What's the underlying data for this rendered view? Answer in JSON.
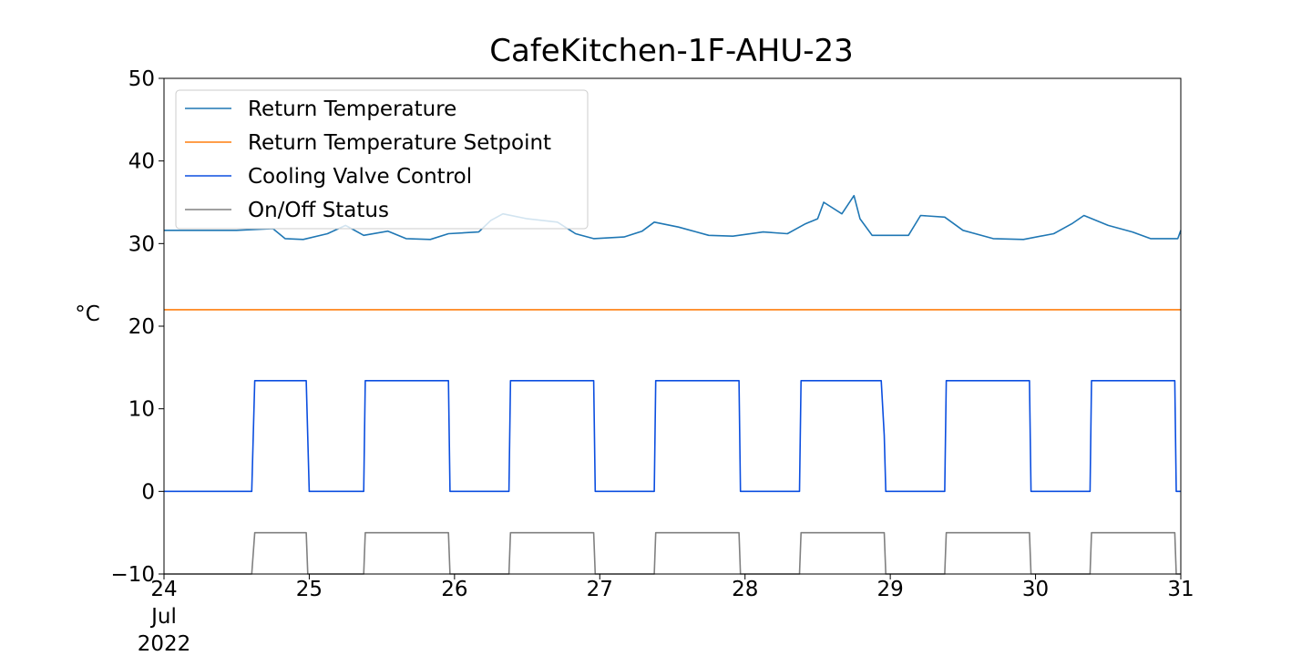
{
  "chart_data": {
    "type": "line",
    "title": "CafeKitchen-1F-AHU-23",
    "xlabel": "",
    "ylabel": "°C",
    "xlim": [
      "2022-07-24",
      "2022-07-31"
    ],
    "ylim": [
      -10,
      50
    ],
    "yticks": [
      "−10",
      "0",
      "10",
      "20",
      "30",
      "40",
      "50"
    ],
    "xticks": [
      {
        "date": "2022-07-24",
        "lines": [
          "24",
          "Jul",
          "2022"
        ]
      },
      {
        "date": "2022-07-25",
        "lines": [
          "25"
        ]
      },
      {
        "date": "2022-07-26",
        "lines": [
          "26"
        ]
      },
      {
        "date": "2022-07-27",
        "lines": [
          "27"
        ]
      },
      {
        "date": "2022-07-28",
        "lines": [
          "28"
        ]
      },
      {
        "date": "2022-07-29",
        "lines": [
          "29"
        ]
      },
      {
        "date": "2022-07-30",
        "lines": [
          "30"
        ]
      },
      {
        "date": "2022-07-31",
        "lines": [
          "31"
        ]
      }
    ],
    "grid": false,
    "legend_position": "upper-left",
    "series": [
      {
        "name": "Return Temperature",
        "color": "#1f77b4",
        "points": [
          [
            "2022-07-24 00:00",
            31.6
          ],
          [
            "2022-07-24 12:00",
            31.6
          ],
          [
            "2022-07-24 18:00",
            31.8
          ],
          [
            "2022-07-24 20:00",
            30.6
          ],
          [
            "2022-07-24 23:00",
            30.5
          ],
          [
            "2022-07-25 03:00",
            31.2
          ],
          [
            "2022-07-25 06:00",
            32.2
          ],
          [
            "2022-07-25 09:00",
            31.0
          ],
          [
            "2022-07-25 13:00",
            31.5
          ],
          [
            "2022-07-25 16:00",
            30.6
          ],
          [
            "2022-07-25 20:00",
            30.5
          ],
          [
            "2022-07-25 23:00",
            31.2
          ],
          [
            "2022-07-26 04:00",
            31.4
          ],
          [
            "2022-07-26 06:00",
            32.8
          ],
          [
            "2022-07-26 08:00",
            33.6
          ],
          [
            "2022-07-26 12:00",
            33.0
          ],
          [
            "2022-07-26 17:00",
            32.6
          ],
          [
            "2022-07-26 20:00",
            31.2
          ],
          [
            "2022-07-26 23:00",
            30.6
          ],
          [
            "2022-07-27 04:00",
            30.8
          ],
          [
            "2022-07-27 07:00",
            31.5
          ],
          [
            "2022-07-27 09:00",
            32.6
          ],
          [
            "2022-07-27 13:00",
            32.0
          ],
          [
            "2022-07-27 18:00",
            31.0
          ],
          [
            "2022-07-27 22:00",
            30.9
          ],
          [
            "2022-07-28 03:00",
            31.4
          ],
          [
            "2022-07-28 07:00",
            31.2
          ],
          [
            "2022-07-28 10:00",
            32.4
          ],
          [
            "2022-07-28 12:00",
            33.0
          ],
          [
            "2022-07-28 13:00",
            35.0
          ],
          [
            "2022-07-28 16:00",
            33.6
          ],
          [
            "2022-07-28 18:00",
            35.8
          ],
          [
            "2022-07-28 19:00",
            33.0
          ],
          [
            "2022-07-28 21:00",
            31.0
          ],
          [
            "2022-07-29 03:00",
            31.0
          ],
          [
            "2022-07-29 05:00",
            33.4
          ],
          [
            "2022-07-29 09:00",
            33.2
          ],
          [
            "2022-07-29 12:00",
            31.6
          ],
          [
            "2022-07-29 17:00",
            30.6
          ],
          [
            "2022-07-29 22:00",
            30.5
          ],
          [
            "2022-07-30 03:00",
            31.2
          ],
          [
            "2022-07-30 06:00",
            32.4
          ],
          [
            "2022-07-30 08:00",
            33.4
          ],
          [
            "2022-07-30 12:00",
            32.2
          ],
          [
            "2022-07-30 16:00",
            31.4
          ],
          [
            "2022-07-30 19:00",
            30.6
          ],
          [
            "2022-07-30 23:30",
            30.6
          ],
          [
            "2022-07-31 00:00",
            31.6
          ]
        ]
      },
      {
        "name": "Return Temperature Setpoint",
        "color": "#ff7f0e",
        "points": [
          [
            "2022-07-24 00:00",
            22
          ],
          [
            "2022-07-31 00:00",
            22
          ]
        ]
      },
      {
        "name": "Cooling Valve Control",
        "color": "#0b4ee0",
        "points": [
          [
            "2022-07-24 00:00",
            0
          ],
          [
            "2022-07-24 14:30",
            0
          ],
          [
            "2022-07-24 15:00",
            13.4
          ],
          [
            "2022-07-24 23:30",
            13.4
          ],
          [
            "2022-07-25 00:00",
            0
          ],
          [
            "2022-07-25 09:00",
            0
          ],
          [
            "2022-07-25 09:15",
            13.4
          ],
          [
            "2022-07-25 23:00",
            13.4
          ],
          [
            "2022-07-25 23:15",
            0
          ],
          [
            "2022-07-26 09:00",
            0
          ],
          [
            "2022-07-26 09:15",
            13.4
          ],
          [
            "2022-07-26 23:00",
            13.4
          ],
          [
            "2022-07-26 23:15",
            0
          ],
          [
            "2022-07-27 09:00",
            0
          ],
          [
            "2022-07-27 09:15",
            13.4
          ],
          [
            "2022-07-27 23:00",
            13.4
          ],
          [
            "2022-07-27 23:15",
            0
          ],
          [
            "2022-07-28 09:00",
            0
          ],
          [
            "2022-07-28 09:15",
            13.4
          ],
          [
            "2022-07-28 22:30",
            13.4
          ],
          [
            "2022-07-28 23:00",
            6.8
          ],
          [
            "2022-07-28 23:15",
            0
          ],
          [
            "2022-07-29 09:00",
            0
          ],
          [
            "2022-07-29 09:15",
            13.4
          ],
          [
            "2022-07-29 23:00",
            13.4
          ],
          [
            "2022-07-29 23:15",
            0
          ],
          [
            "2022-07-30 09:00",
            0
          ],
          [
            "2022-07-30 09:15",
            13.4
          ],
          [
            "2022-07-30 23:00",
            13.4
          ],
          [
            "2022-07-30 23:15",
            0
          ],
          [
            "2022-07-31 00:00",
            0
          ]
        ]
      },
      {
        "name": "On/Off Status",
        "color": "#808080",
        "points": [
          [
            "2022-07-24 00:00",
            -10
          ],
          [
            "2022-07-24 14:30",
            -10
          ],
          [
            "2022-07-24 15:00",
            -5
          ],
          [
            "2022-07-24 23:30",
            -5
          ],
          [
            "2022-07-24 23:45",
            -10
          ],
          [
            "2022-07-25 09:00",
            -10
          ],
          [
            "2022-07-25 09:15",
            -5
          ],
          [
            "2022-07-25 23:00",
            -5
          ],
          [
            "2022-07-25 23:15",
            -10
          ],
          [
            "2022-07-26 09:00",
            -10
          ],
          [
            "2022-07-26 09:15",
            -5
          ],
          [
            "2022-07-26 23:00",
            -5
          ],
          [
            "2022-07-26 23:15",
            -10
          ],
          [
            "2022-07-27 09:00",
            -10
          ],
          [
            "2022-07-27 09:15",
            -5
          ],
          [
            "2022-07-27 23:00",
            -5
          ],
          [
            "2022-07-27 23:15",
            -10
          ],
          [
            "2022-07-28 09:00",
            -10
          ],
          [
            "2022-07-28 09:15",
            -5
          ],
          [
            "2022-07-28 23:00",
            -5
          ],
          [
            "2022-07-28 23:15",
            -10
          ],
          [
            "2022-07-29 09:00",
            -10
          ],
          [
            "2022-07-29 09:15",
            -5
          ],
          [
            "2022-07-29 23:00",
            -5
          ],
          [
            "2022-07-29 23:15",
            -10
          ],
          [
            "2022-07-30 09:00",
            -10
          ],
          [
            "2022-07-30 09:15",
            -5
          ],
          [
            "2022-07-30 23:00",
            -5
          ],
          [
            "2022-07-30 23:15",
            -10
          ],
          [
            "2022-07-31 00:00",
            -10
          ]
        ]
      }
    ]
  }
}
